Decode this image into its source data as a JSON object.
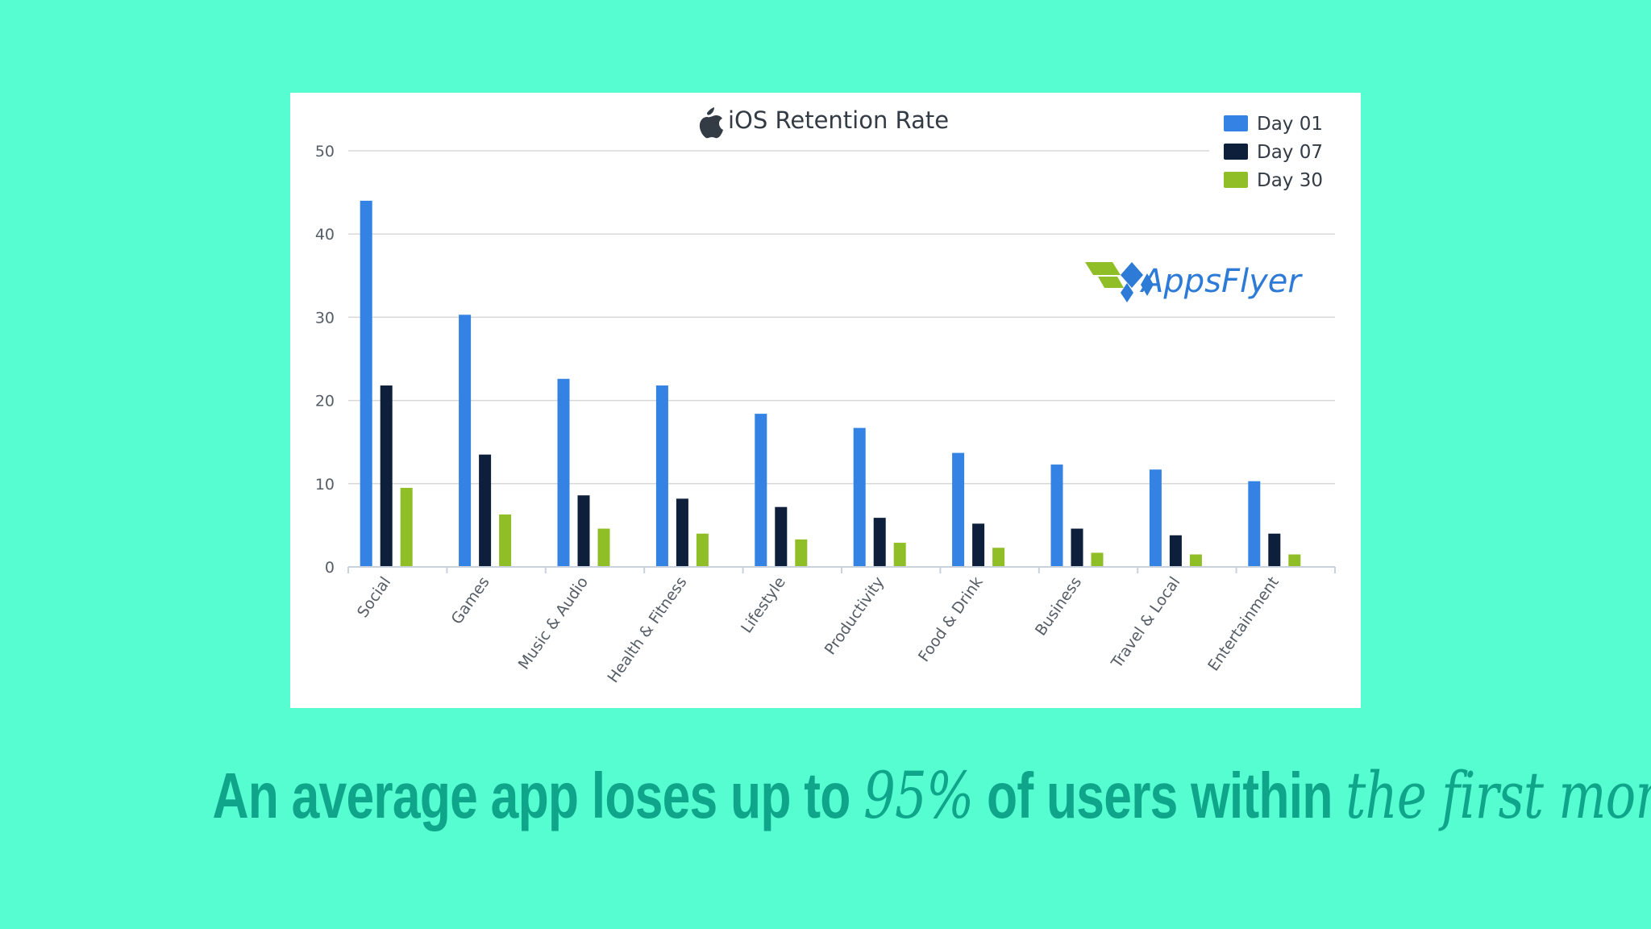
{
  "chart_data": {
    "type": "bar",
    "title": "iOS Retention Rate",
    "title_icon": "apple-icon",
    "categories": [
      "Social",
      "Games",
      "Music & Audio",
      "Health & Fitness",
      "Lifestyle",
      "Productivity",
      "Food & Drink",
      "Business",
      "Travel & Local",
      "Entertainment"
    ],
    "series": [
      {
        "name": "Day 01",
        "color": "#3482e3",
        "values": [
          44,
          30.3,
          22.6,
          21.8,
          18.4,
          16.7,
          13.7,
          12.3,
          11.7,
          10.3
        ]
      },
      {
        "name": "Day 07",
        "color": "#0e1f3b",
        "values": [
          21.8,
          13.5,
          8.6,
          8.2,
          7.2,
          5.9,
          5.2,
          4.6,
          3.8,
          4.0
        ]
      },
      {
        "name": "Day 30",
        "color": "#8fbe27",
        "values": [
          9.5,
          6.3,
          4.6,
          4.0,
          3.3,
          2.9,
          2.3,
          1.7,
          1.5,
          1.5
        ]
      }
    ],
    "ylim": [
      0,
      50
    ],
    "yticks": [
      0,
      10,
      20,
      30,
      40,
      50
    ],
    "xlabel": "",
    "ylabel": "",
    "grid": true,
    "legend_position": "top-right"
  },
  "logo": {
    "text": "AppsFlyer",
    "icon": "appsflyer-logo-icon",
    "colors": [
      "#2d7bd6",
      "#8fbe27"
    ]
  },
  "caption": {
    "part1": "An average app loses up to ",
    "part2": "95%",
    "part3": " of users within ",
    "part4": "the first month"
  },
  "colors": {
    "background": "#55fdd0",
    "caption": "#0ea58a",
    "grid": "#d8d8d8"
  }
}
